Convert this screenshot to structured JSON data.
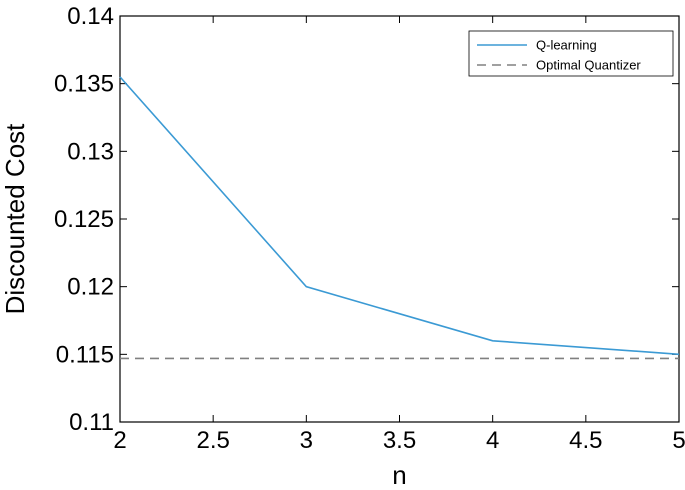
{
  "chart_data": {
    "type": "line",
    "title": "",
    "xlabel": "n",
    "ylabel": "Discounted Cost",
    "xlim": [
      2,
      5
    ],
    "ylim": [
      0.11,
      0.14
    ],
    "xticks": [
      2,
      2.5,
      3,
      3.5,
      4,
      4.5,
      5
    ],
    "xtick_labels": [
      "2",
      "2.5",
      "3",
      "3.5",
      "4",
      "4.5",
      "5"
    ],
    "yticks": [
      0.11,
      0.115,
      0.12,
      0.125,
      0.13,
      0.135,
      0.14
    ],
    "ytick_labels": [
      "0.11",
      "0.115",
      "0.12",
      "0.125",
      "0.13",
      "0.135",
      "0.14"
    ],
    "grid": false,
    "legend_position": "top-right",
    "series": [
      {
        "name": "Q-learning",
        "style": "solid",
        "color": "#3b9ad4",
        "x": [
          2,
          3,
          4,
          5
        ],
        "y": [
          0.1355,
          0.12,
          0.116,
          0.115
        ]
      },
      {
        "name": "Optimal Quantizer",
        "style": "dashed",
        "color": "#808080",
        "x": [
          2,
          5
        ],
        "y": [
          0.1147,
          0.1147
        ]
      }
    ]
  }
}
